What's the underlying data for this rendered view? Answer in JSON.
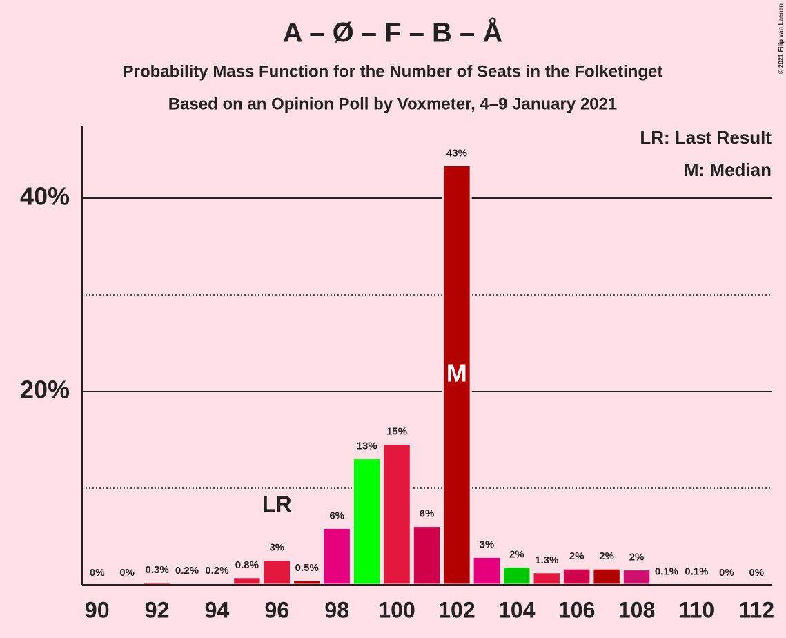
{
  "chart_data": {
    "type": "bar",
    "title": "A – Ø – F – B – Å",
    "subtitle": "Probability Mass Function for the Number of Seats in the Folketinget",
    "subtitle2": "Based on an Opinion Poll by Voxmeter, 4–9 January 2021",
    "x": [
      90,
      91,
      92,
      93,
      94,
      95,
      96,
      97,
      98,
      99,
      100,
      101,
      102,
      103,
      104,
      105,
      106,
      107,
      108,
      109,
      110,
      111,
      112
    ],
    "values": [
      0,
      0,
      0.3,
      0.2,
      0.2,
      0.8,
      2.6,
      0.5,
      5.9,
      13.1,
      14.6,
      6.1,
      43.4,
      2.9,
      1.9,
      1.3,
      1.7,
      1.7,
      1.6,
      0.1,
      0.1,
      0,
      0
    ],
    "value_labels": [
      "0%",
      "0%",
      "0.3%",
      "0.2%",
      "0.2%",
      "0.8%",
      "3%",
      "0.5%",
      "6%",
      "13%",
      "15%",
      "6%",
      "43%",
      "3%",
      "2%",
      "1.3%",
      "2%",
      "2%",
      "2%",
      "0.1%",
      "0.1%",
      "0%",
      "0%"
    ],
    "colors": [
      "#c8102e",
      "#c8102e",
      "#c8102e",
      "#d4006a",
      "#00c000",
      "#e4173f",
      "#e4173f",
      "#b30000",
      "#e6007e",
      "#00ff00",
      "#e4173f",
      "#d0004a",
      "#b30000",
      "#e6007e",
      "#00c800",
      "#e4173f",
      "#d0004a",
      "#b30000",
      "#d0106e",
      "#c8102e",
      "#c8102e",
      "#c8102e",
      "#c8102e"
    ],
    "xlim": [
      89.5,
      112.5
    ],
    "xticks": [
      90,
      92,
      94,
      96,
      98,
      100,
      102,
      104,
      106,
      108,
      110,
      112
    ],
    "ylim": [
      0,
      47.5
    ],
    "yticks": [
      {
        "value": 20,
        "label": "20%"
      },
      {
        "value": 40,
        "label": "40%"
      }
    ],
    "minor_yticks": [
      10,
      30
    ],
    "grid": true,
    "last_result": {
      "x": 96,
      "label": "LR"
    },
    "median": {
      "x": 102,
      "label": "M"
    },
    "legend": [
      "LR: Last Result",
      "M: Median"
    ],
    "copyright": "© 2021 Filip van Laenen"
  }
}
